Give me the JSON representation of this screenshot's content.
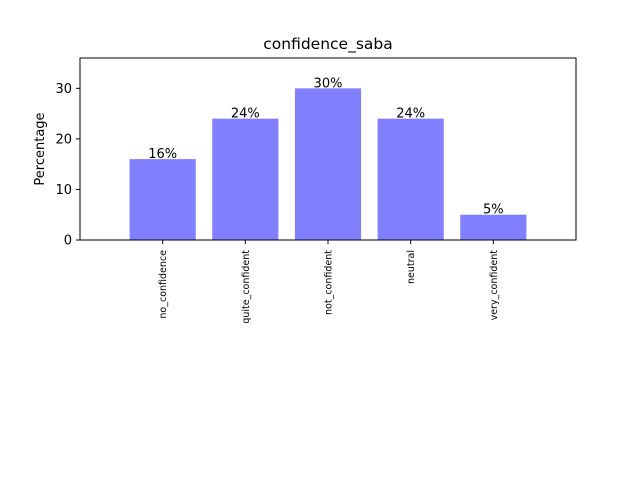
{
  "chart_data": {
    "type": "bar",
    "title": "confidence_saba",
    "xlabel": "",
    "ylabel": "Percentage",
    "categories": [
      "no_confidence",
      "quite_confident",
      "not_confident",
      "neutral",
      "very_confident"
    ],
    "values": [
      16,
      24,
      30,
      24,
      5
    ],
    "value_labels": [
      "16%",
      "24%",
      "30%",
      "24%",
      "5%"
    ],
    "yticks": [
      0,
      10,
      20,
      30
    ],
    "ylim": [
      0,
      36
    ],
    "bar_color": "#8080ff",
    "grid": false,
    "legend": "none"
  }
}
